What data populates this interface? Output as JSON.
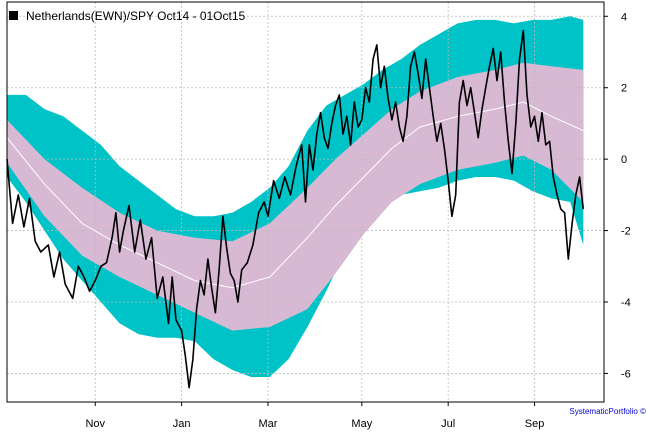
{
  "chart_data": {
    "type": "line",
    "title": "",
    "xlabel": "",
    "ylabel": "",
    "ylim": [
      -6.8,
      4.4
    ],
    "y_ticks": [
      4,
      2,
      0,
      -2,
      -4,
      -6
    ],
    "y_axis_side": "right",
    "grid": true,
    "legend": {
      "label": "Netherlands(EWN)/SPY Oct14 - 01Oct15",
      "position": "top-left"
    },
    "x_tick_labels": [
      "Nov",
      "Jan",
      "Mar",
      "May",
      "Jul",
      "Sep"
    ],
    "x_tick_days": [
      47,
      93,
      139,
      189,
      235,
      281
    ],
    "x_range_days": [
      0,
      318
    ],
    "credit": "SystematicPortfolio ©",
    "colors": {
      "outer_band": "#00c3c8",
      "inner_band": "#d8b9d4",
      "mid_line": "#ffffff",
      "price_line": "#000000",
      "grid": "#bbbbbb"
    },
    "series": [
      {
        "name": "Netherlands(EWN)/SPY",
        "role": "price",
        "points": [
          [
            0,
            0.0
          ],
          [
            3,
            -1.8
          ],
          [
            6,
            -1.0
          ],
          [
            9,
            -1.9
          ],
          [
            12,
            -1.1
          ],
          [
            15,
            -2.3
          ],
          [
            18,
            -2.6
          ],
          [
            22,
            -2.4
          ],
          [
            25,
            -3.3
          ],
          [
            28,
            -2.6
          ],
          [
            31,
            -3.5
          ],
          [
            35,
            -3.9
          ],
          [
            38,
            -3.0
          ],
          [
            41,
            -3.3
          ],
          [
            44,
            -3.7
          ],
          [
            47,
            -3.4
          ],
          [
            50,
            -3.0
          ],
          [
            53,
            -2.9
          ],
          [
            56,
            -2.2
          ],
          [
            58,
            -1.5
          ],
          [
            60,
            -2.6
          ],
          [
            62,
            -2.0
          ],
          [
            65,
            -1.3
          ],
          [
            68,
            -2.6
          ],
          [
            71,
            -1.7
          ],
          [
            74,
            -2.8
          ],
          [
            77,
            -2.2
          ],
          [
            80,
            -3.9
          ],
          [
            83,
            -3.3
          ],
          [
            86,
            -4.6
          ],
          [
            88,
            -3.3
          ],
          [
            90,
            -4.5
          ],
          [
            93,
            -4.8
          ],
          [
            95,
            -5.5
          ],
          [
            97,
            -6.4
          ],
          [
            99,
            -5.6
          ],
          [
            101,
            -4.2
          ],
          [
            103,
            -3.4
          ],
          [
            105,
            -3.8
          ],
          [
            107,
            -2.8
          ],
          [
            109,
            -3.6
          ],
          [
            111,
            -4.3
          ],
          [
            113,
            -3.1
          ],
          [
            115,
            -1.6
          ],
          [
            117,
            -2.5
          ],
          [
            119,
            -3.2
          ],
          [
            121,
            -3.4
          ],
          [
            123,
            -4.0
          ],
          [
            125,
            -3.1
          ],
          [
            128,
            -2.9
          ],
          [
            131,
            -2.4
          ],
          [
            134,
            -1.5
          ],
          [
            137,
            -1.2
          ],
          [
            139,
            -1.6
          ],
          [
            142,
            -0.6
          ],
          [
            145,
            -1.1
          ],
          [
            148,
            -0.5
          ],
          [
            151,
            -1.0
          ],
          [
            154,
            -0.2
          ],
          [
            157,
            0.4
          ],
          [
            159,
            -1.2
          ],
          [
            161,
            0.4
          ],
          [
            163,
            -0.3
          ],
          [
            165,
            0.7
          ],
          [
            167,
            1.3
          ],
          [
            169,
            0.6
          ],
          [
            171,
            0.3
          ],
          [
            173,
            1.0
          ],
          [
            175,
            1.5
          ],
          [
            177,
            1.8
          ],
          [
            179,
            0.7
          ],
          [
            181,
            1.2
          ],
          [
            183,
            0.4
          ],
          [
            185,
            1.6
          ],
          [
            187,
            0.9
          ],
          [
            189,
            1.1
          ],
          [
            191,
            2.0
          ],
          [
            193,
            1.6
          ],
          [
            195,
            2.8
          ],
          [
            197,
            3.2
          ],
          [
            199,
            2.0
          ],
          [
            201,
            2.6
          ],
          [
            203,
            1.7
          ],
          [
            205,
            1.1
          ],
          [
            207,
            1.6
          ],
          [
            209,
            0.9
          ],
          [
            211,
            0.5
          ],
          [
            213,
            1.2
          ],
          [
            215,
            2.6
          ],
          [
            217,
            3.0
          ],
          [
            219,
            2.4
          ],
          [
            221,
            1.7
          ],
          [
            223,
            2.8
          ],
          [
            225,
            2.0
          ],
          [
            227,
            1.2
          ],
          [
            229,
            0.5
          ],
          [
            231,
            1.0
          ],
          [
            233,
            0.3
          ],
          [
            235,
            -0.6
          ],
          [
            237,
            -1.6
          ],
          [
            239,
            -1.0
          ],
          [
            241,
            1.6
          ],
          [
            243,
            2.2
          ],
          [
            245,
            1.5
          ],
          [
            247,
            2.0
          ],
          [
            249,
            1.3
          ],
          [
            251,
            0.6
          ],
          [
            253,
            1.4
          ],
          [
            255,
            2.0
          ],
          [
            257,
            2.6
          ],
          [
            259,
            3.1
          ],
          [
            261,
            2.2
          ],
          [
            263,
            3.0
          ],
          [
            265,
            1.6
          ],
          [
            267,
            0.5
          ],
          [
            269,
            -0.4
          ],
          [
            271,
            1.0
          ],
          [
            273,
            2.8
          ],
          [
            275,
            3.6
          ],
          [
            277,
            1.8
          ],
          [
            279,
            0.9
          ],
          [
            281,
            1.2
          ],
          [
            283,
            0.5
          ],
          [
            285,
            1.3
          ],
          [
            287,
            0.4
          ],
          [
            289,
            0.5
          ],
          [
            291,
            -0.5
          ],
          [
            293,
            -1.0
          ],
          [
            295,
            -1.4
          ],
          [
            297,
            -1.5
          ],
          [
            299,
            -2.8
          ],
          [
            301,
            -1.8
          ],
          [
            303,
            -1.0
          ],
          [
            305,
            -0.5
          ],
          [
            307,
            -1.4
          ]
        ]
      },
      {
        "name": "mid",
        "role": "band_mid",
        "points": [
          [
            0,
            0.6
          ],
          [
            20,
            -0.7
          ],
          [
            40,
            -1.8
          ],
          [
            60,
            -2.4
          ],
          [
            80,
            -2.9
          ],
          [
            100,
            -3.4
          ],
          [
            120,
            -3.6
          ],
          [
            140,
            -3.3
          ],
          [
            160,
            -2.2
          ],
          [
            175,
            -1.3
          ],
          [
            190,
            -0.5
          ],
          [
            205,
            0.3
          ],
          [
            220,
            0.9
          ],
          [
            240,
            1.2
          ],
          [
            260,
            1.4
          ],
          [
            275,
            1.6
          ],
          [
            290,
            1.2
          ],
          [
            307,
            0.8
          ]
        ]
      },
      {
        "name": "inner_upper",
        "role": "band_inner_upper",
        "points": [
          [
            0,
            1.1
          ],
          [
            20,
            0.0
          ],
          [
            40,
            -0.8
          ],
          [
            60,
            -1.5
          ],
          [
            80,
            -2.0
          ],
          [
            100,
            -2.2
          ],
          [
            120,
            -2.3
          ],
          [
            140,
            -1.8
          ],
          [
            160,
            -0.8
          ],
          [
            175,
            0.0
          ],
          [
            190,
            0.7
          ],
          [
            205,
            1.4
          ],
          [
            220,
            1.9
          ],
          [
            240,
            2.3
          ],
          [
            260,
            2.5
          ],
          [
            275,
            2.7
          ],
          [
            290,
            2.6
          ],
          [
            307,
            2.5
          ]
        ]
      },
      {
        "name": "inner_lower",
        "role": "band_inner_lower",
        "points": [
          [
            0,
            -0.1
          ],
          [
            20,
            -1.6
          ],
          [
            40,
            -2.7
          ],
          [
            60,
            -3.3
          ],
          [
            80,
            -3.8
          ],
          [
            100,
            -4.3
          ],
          [
            120,
            -4.8
          ],
          [
            140,
            -4.7
          ],
          [
            160,
            -4.2
          ],
          [
            175,
            -3.2
          ],
          [
            190,
            -2.1
          ],
          [
            205,
            -1.2
          ],
          [
            220,
            -0.7
          ],
          [
            240,
            -0.3
          ],
          [
            260,
            -0.1
          ],
          [
            275,
            0.1
          ],
          [
            290,
            -0.3
          ],
          [
            307,
            -1.2
          ]
        ]
      },
      {
        "name": "outer_upper",
        "role": "band_outer_upper",
        "points": [
          [
            0,
            1.8
          ],
          [
            10,
            1.8
          ],
          [
            20,
            1.4
          ],
          [
            30,
            1.2
          ],
          [
            40,
            0.8
          ],
          [
            50,
            0.4
          ],
          [
            60,
            -0.2
          ],
          [
            70,
            -0.6
          ],
          [
            80,
            -1.0
          ],
          [
            90,
            -1.4
          ],
          [
            100,
            -1.6
          ],
          [
            110,
            -1.6
          ],
          [
            120,
            -1.5
          ],
          [
            130,
            -1.2
          ],
          [
            140,
            -0.8
          ],
          [
            150,
            -0.2
          ],
          [
            160,
            0.8
          ],
          [
            170,
            1.5
          ],
          [
            180,
            1.8
          ],
          [
            190,
            2.1
          ],
          [
            200,
            2.5
          ],
          [
            210,
            2.8
          ],
          [
            220,
            3.2
          ],
          [
            230,
            3.5
          ],
          [
            240,
            3.8
          ],
          [
            250,
            3.9
          ],
          [
            260,
            3.9
          ],
          [
            270,
            3.8
          ],
          [
            280,
            3.9
          ],
          [
            290,
            3.9
          ],
          [
            300,
            4.0
          ],
          [
            307,
            3.9
          ]
        ]
      },
      {
        "name": "outer_lower",
        "role": "band_outer_lower",
        "points": [
          [
            0,
            -0.5
          ],
          [
            10,
            -1.2
          ],
          [
            20,
            -2.0
          ],
          [
            30,
            -2.8
          ],
          [
            40,
            -3.4
          ],
          [
            50,
            -4.0
          ],
          [
            60,
            -4.6
          ],
          [
            70,
            -4.9
          ],
          [
            80,
            -5.0
          ],
          [
            90,
            -5.0
          ],
          [
            100,
            -5.1
          ],
          [
            110,
            -5.6
          ],
          [
            120,
            -5.9
          ],
          [
            130,
            -6.1
          ],
          [
            140,
            -6.1
          ],
          [
            150,
            -5.6
          ],
          [
            160,
            -4.7
          ],
          [
            170,
            -3.7
          ],
          [
            180,
            -2.6
          ],
          [
            190,
            -1.7
          ],
          [
            200,
            -1.2
          ],
          [
            210,
            -1.0
          ],
          [
            220,
            -0.9
          ],
          [
            230,
            -0.8
          ],
          [
            240,
            -0.6
          ],
          [
            250,
            -0.5
          ],
          [
            260,
            -0.5
          ],
          [
            270,
            -0.6
          ],
          [
            280,
            -0.9
          ],
          [
            290,
            -1.1
          ],
          [
            300,
            -1.2
          ],
          [
            307,
            -2.4
          ]
        ]
      }
    ]
  }
}
